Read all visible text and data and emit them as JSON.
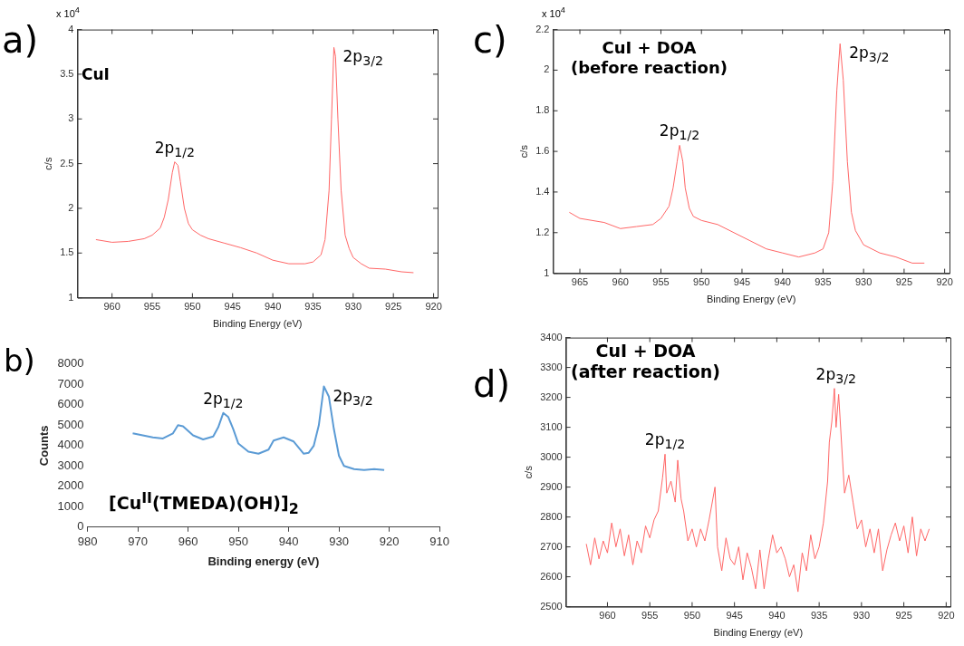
{
  "chart_data": [
    {
      "type": "line",
      "xlabel": "Binding Energy (eV)",
      "ylabel": "c/s",
      "xlim": [
        964.3,
        919.5
      ],
      "xticks": [
        960,
        955,
        950,
        945,
        940,
        935,
        930,
        925,
        920
      ],
      "ylim": [
        1,
        4
      ],
      "yticks": [
        1,
        1.5,
        2,
        2.5,
        3,
        3.5,
        4
      ],
      "grid": false,
      "legend": false,
      "marker": "none",
      "line_style": "solid",
      "annotations": [
        "a)",
        "CuI",
        "x 10$^{4}$",
        {
          "text": "2p$_{1/2}$",
          "x": 952.2,
          "y": 2.52
        },
        {
          "text": "2p$_{3/2}$",
          "x": 932.4,
          "y": 3.8
        }
      ],
      "series": [
        {
          "color": "#ff6666",
          "x": [
            962,
            960,
            958,
            956,
            955,
            954,
            953.5,
            953,
            952.5,
            952.2,
            951.8,
            951.5,
            951,
            950.5,
            950,
            949,
            948,
            946,
            944,
            942,
            940,
            938,
            936,
            935,
            934,
            933.5,
            933,
            932.7,
            932.4,
            932.2,
            931.9,
            931.5,
            931,
            930.5,
            930,
            929,
            928,
            926,
            924,
            922.5
          ],
          "values": [
            1.65,
            1.62,
            1.63,
            1.66,
            1.7,
            1.78,
            1.9,
            2.1,
            2.4,
            2.52,
            2.48,
            2.3,
            2.0,
            1.83,
            1.76,
            1.7,
            1.66,
            1.61,
            1.56,
            1.5,
            1.42,
            1.38,
            1.38,
            1.4,
            1.48,
            1.65,
            2.2,
            3.0,
            3.8,
            3.7,
            3.0,
            2.2,
            1.7,
            1.55,
            1.45,
            1.38,
            1.33,
            1.32,
            1.29,
            1.28
          ]
        }
      ]
    },
    {
      "type": "line",
      "xlabel": "Binding Energy (eV)",
      "ylabel": "c/s",
      "xlim": [
        968.3,
        919.4
      ],
      "xticks": [
        965,
        960,
        955,
        950,
        945,
        940,
        935,
        930,
        925,
        920
      ],
      "ylim": [
        1,
        2.2
      ],
      "yticks": [
        1,
        1.2,
        1.4,
        1.6,
        1.8,
        2,
        2.2
      ],
      "grid": false,
      "legend": false,
      "marker": "none",
      "line_style": "solid",
      "annotations": [
        "c)",
        "CuI + DOA\n(before reaction)",
        "x 10$^{4}$",
        {
          "text": "2p$_{1/2}$",
          "x": 952.7,
          "y": 1.63
        },
        {
          "text": "2p$_{3/2}$",
          "x": 932.9,
          "y": 2.13
        }
      ],
      "series": [
        {
          "color": "#ff6666",
          "x": [
            966.3,
            965,
            962,
            960,
            958,
            956,
            955,
            954,
            953.5,
            953,
            952.7,
            952.3,
            952,
            951.5,
            951,
            950,
            948,
            946,
            944,
            942,
            940,
            938,
            936,
            935,
            934.3,
            933.8,
            933.3,
            932.9,
            932.5,
            932,
            931.5,
            931,
            930,
            928,
            926,
            924,
            922.5
          ],
          "values": [
            1.3,
            1.27,
            1.25,
            1.22,
            1.23,
            1.24,
            1.27,
            1.33,
            1.42,
            1.55,
            1.63,
            1.55,
            1.42,
            1.32,
            1.28,
            1.26,
            1.24,
            1.2,
            1.16,
            1.12,
            1.1,
            1.08,
            1.1,
            1.12,
            1.2,
            1.45,
            1.9,
            2.13,
            1.95,
            1.55,
            1.3,
            1.21,
            1.14,
            1.1,
            1.08,
            1.05,
            1.05
          ]
        }
      ]
    },
    {
      "type": "line",
      "xlabel": "Binding energy (eV)",
      "ylabel": "Counts",
      "xlim": [
        980,
        910
      ],
      "xticks": [
        980,
        970,
        960,
        950,
        940,
        930,
        920,
        910
      ],
      "ylim": [
        0,
        8000
      ],
      "yticks": [
        0,
        1000,
        2000,
        3000,
        4000,
        5000,
        6000,
        7000,
        8000
      ],
      "grid": false,
      "legend": false,
      "marker": "none",
      "line_style": "solid",
      "annotations": [
        "b)",
        "[Cu$^{II}$(TMEDA)(OH)]$_{2}$",
        {
          "text": "2p$_{1/2}$",
          "x": 953,
          "y": 5600
        },
        {
          "text": "2p$_{3/2}$",
          "x": 933,
          "y": 6900
        }
      ],
      "series": [
        {
          "color": "#5b9bd5",
          "x": [
            971,
            969,
            967,
            965,
            963,
            962,
            961,
            959,
            957,
            955,
            954,
            953,
            952,
            951,
            950,
            948,
            946,
            944,
            943,
            941,
            939,
            938,
            937,
            936,
            935,
            934,
            933,
            932,
            931,
            930,
            929,
            927,
            925,
            923,
            921
          ],
          "values": [
            4600,
            4500,
            4400,
            4350,
            4600,
            5000,
            4950,
            4500,
            4300,
            4450,
            4900,
            5600,
            5400,
            4800,
            4100,
            3700,
            3600,
            3800,
            4250,
            4400,
            4200,
            3900,
            3600,
            3650,
            4000,
            5000,
            6900,
            6400,
            4800,
            3500,
            3000,
            2850,
            2800,
            2850,
            2800
          ]
        }
      ]
    },
    {
      "type": "line",
      "xlabel": "Binding Energy (eV)",
      "ylabel": "c/s",
      "xlim": [
        964.9,
        919.5
      ],
      "xticks": [
        960,
        955,
        950,
        945,
        940,
        935,
        930,
        925,
        920
      ],
      "ylim": [
        2500,
        3400
      ],
      "yticks": [
        2500,
        2600,
        2700,
        2800,
        2900,
        3000,
        3100,
        3200,
        3300,
        3400
      ],
      "grid": false,
      "legend": false,
      "marker": "none",
      "line_style": "solid",
      "annotations": [
        "d)",
        "CuI + DOA\n(after reaction)",
        {
          "text": "2p$_{1/2}$",
          "x": 953.2,
          "y": 3010
        },
        {
          "text": "2p$_{3/2}$",
          "x": 933,
          "y": 3230
        }
      ],
      "series": [
        {
          "color": "#ff6666",
          "x": [
            962.5,
            962,
            961.5,
            961,
            960.5,
            960,
            959.5,
            959,
            958.5,
            958,
            957.5,
            957,
            956.5,
            956,
            955.5,
            955,
            954.5,
            954,
            953.5,
            953.2,
            953,
            952.5,
            952,
            951.7,
            951.3,
            951,
            950.5,
            950,
            949.5,
            949,
            948.5,
            948,
            947.3,
            947,
            946.5,
            946,
            945.5,
            945,
            944.5,
            944,
            943.5,
            943,
            942.5,
            942,
            941.5,
            941,
            940.5,
            940,
            939.5,
            939,
            938.5,
            938,
            937.5,
            937,
            936.5,
            936,
            935.5,
            935,
            934.5,
            934,
            933.8,
            933.5,
            933.2,
            933,
            932.7,
            932.3,
            932,
            931.5,
            931,
            930.5,
            930,
            929.5,
            929,
            928.5,
            928,
            927.5,
            927,
            926.5,
            926,
            925.5,
            925,
            924.5,
            924,
            923.5,
            923,
            922.5,
            922
          ],
          "values": [
            2710,
            2640,
            2730,
            2660,
            2720,
            2680,
            2780,
            2700,
            2760,
            2670,
            2740,
            2640,
            2720,
            2680,
            2770,
            2730,
            2790,
            2820,
            2930,
            3010,
            2880,
            2920,
            2850,
            2990,
            2860,
            2820,
            2720,
            2760,
            2700,
            2760,
            2720,
            2790,
            2900,
            2700,
            2620,
            2730,
            2660,
            2640,
            2700,
            2590,
            2680,
            2630,
            2560,
            2690,
            2560,
            2660,
            2740,
            2680,
            2700,
            2660,
            2600,
            2640,
            2550,
            2680,
            2620,
            2740,
            2660,
            2700,
            2780,
            2920,
            3050,
            3120,
            3230,
            3100,
            3210,
            3020,
            2880,
            2940,
            2850,
            2760,
            2790,
            2700,
            2760,
            2680,
            2760,
            2620,
            2690,
            2740,
            2780,
            2720,
            2770,
            2680,
            2800,
            2670,
            2760,
            2720,
            2760
          ]
        }
      ]
    }
  ]
}
